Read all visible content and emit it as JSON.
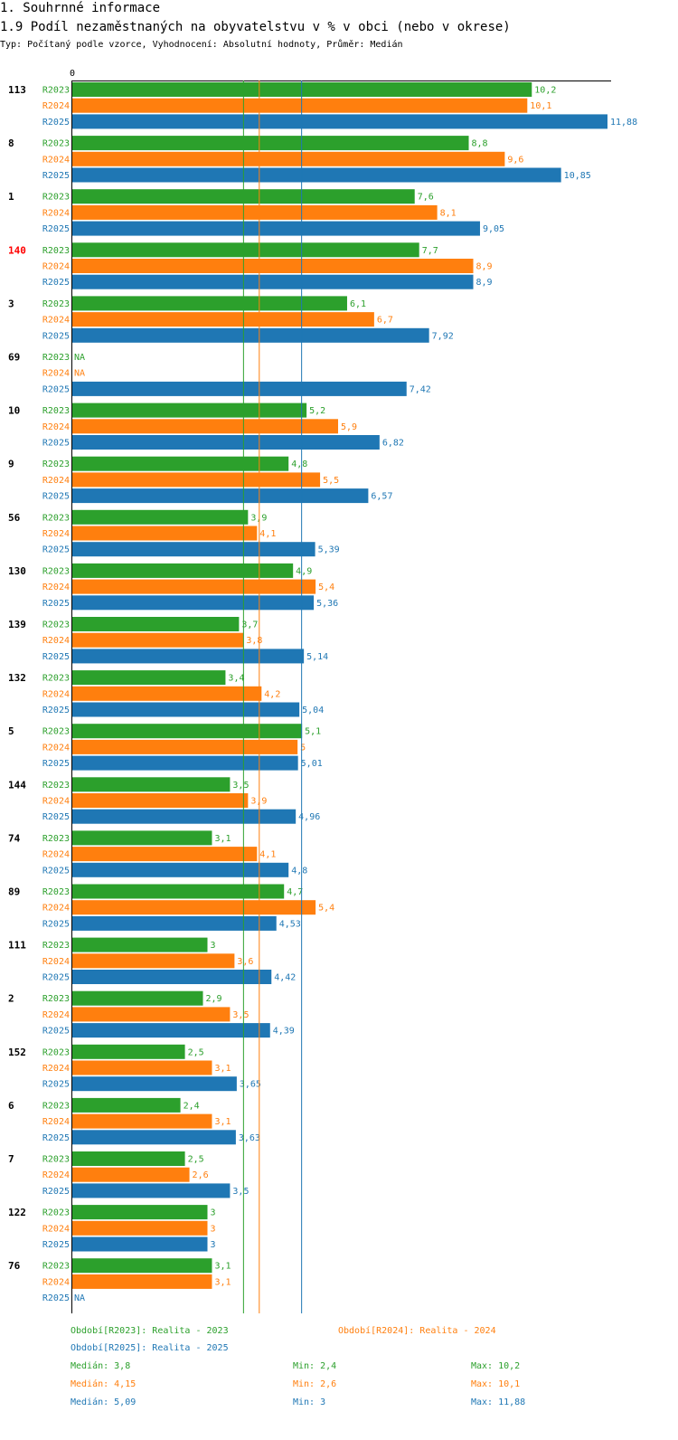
{
  "header": {
    "section": "1. Souhrnné informace",
    "title": "1.9 Podíl nezaměstnaných na obyvatelstvu v % v obci (nebo v okrese)",
    "subtitle": "Typ: Počítaný podle vzorce, Vyhodnocení: Absolutní hodnoty, Průměr: Medián"
  },
  "colors": {
    "R2023": "#2ca02c",
    "R2024": "#ff7f0e",
    "R2025": "#1f77b4",
    "highlight": "#ff0000",
    "axis": "#000000"
  },
  "chart_data": {
    "type": "bar",
    "orientation": "horizontal",
    "axis_zero_label": "0",
    "xlim": [
      0,
      11.88
    ],
    "highlight_category": "140",
    "categories": [
      "113",
      "8",
      "1",
      "140",
      "3",
      "69",
      "10",
      "9",
      "56",
      "130",
      "139",
      "132",
      "5",
      "144",
      "74",
      "89",
      "111",
      "2",
      "152",
      "6",
      "7",
      "122",
      "76"
    ],
    "series": [
      {
        "name": "R2023",
        "values": [
          10.2,
          8.8,
          7.6,
          7.7,
          6.1,
          null,
          5.2,
          4.8,
          3.9,
          4.9,
          3.7,
          3.4,
          5.1,
          3.5,
          3.1,
          4.7,
          3,
          2.9,
          2.5,
          2.4,
          2.5,
          3,
          3.1
        ],
        "labels": [
          "10,2",
          "8,8",
          "7,6",
          "7,7",
          "6,1",
          "NA",
          "5,2",
          "4,8",
          "3,9",
          "4,9",
          "3,7",
          "3,4",
          "5,1",
          "3,5",
          "3,1",
          "4,7",
          "3",
          "2,9",
          "2,5",
          "2,4",
          "2,5",
          "3",
          "3,1"
        ]
      },
      {
        "name": "R2024",
        "values": [
          10.1,
          9.6,
          8.1,
          8.9,
          6.7,
          null,
          5.9,
          5.5,
          4.1,
          5.4,
          3.8,
          4.2,
          5,
          3.9,
          4.1,
          5.4,
          3.6,
          3.5,
          3.1,
          3.1,
          2.6,
          3,
          3.1
        ],
        "labels": [
          "10,1",
          "9,6",
          "8,1",
          "8,9",
          "6,7",
          "NA",
          "5,9",
          "5,5",
          "4,1",
          "5,4",
          "3,8",
          "4,2",
          "5",
          "3,9",
          "4,1",
          "5,4",
          "3,6",
          "3,5",
          "3,1",
          "3,1",
          "2,6",
          "3",
          "3,1"
        ]
      },
      {
        "name": "R2025",
        "values": [
          11.88,
          10.85,
          9.05,
          8.9,
          7.92,
          7.42,
          6.82,
          6.57,
          5.39,
          5.36,
          5.14,
          5.04,
          5.01,
          4.96,
          4.8,
          4.53,
          4.42,
          4.39,
          3.65,
          3.63,
          3.5,
          3,
          null
        ],
        "labels": [
          "11,88",
          "10,85",
          "9,05",
          "8,9",
          "7,92",
          "7,42",
          "6,82",
          "6,57",
          "5,39",
          "5,36",
          "5,14",
          "5,04",
          "5,01",
          "4,96",
          "4,8",
          "4,53",
          "4,42",
          "4,39",
          "3,65",
          "3,63",
          "3,5",
          "3",
          "NA"
        ]
      }
    ],
    "median_lines": {
      "R2023": 3.8,
      "R2024": 4.15,
      "R2025": 5.09
    }
  },
  "legend": {
    "periods": {
      "R2023": "Období[R2023]: Realita - 2023",
      "R2024": "Období[R2024]: Realita - 2024",
      "R2025": "Období[R2025]: Realita - 2025"
    },
    "stats": [
      {
        "series": "R2023",
        "median": "Medián: 3,8",
        "min": "Min: 2,4",
        "max": "Max: 10,2"
      },
      {
        "series": "R2024",
        "median": "Medián: 4,15",
        "min": "Min: 2,6",
        "max": "Max: 10,1"
      },
      {
        "series": "R2025",
        "median": "Medián: 5,09",
        "min": "Min: 3",
        "max": "Max: 11,88"
      }
    ]
  }
}
